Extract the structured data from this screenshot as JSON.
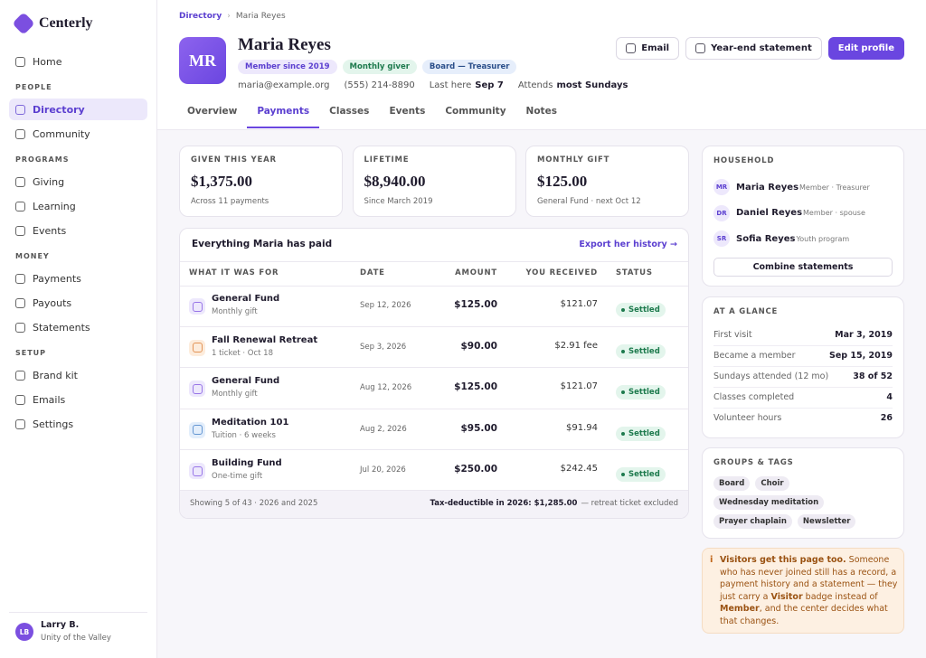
{
  "sidebar": {
    "brand": "Centerly",
    "home": "Home",
    "groups": [
      {
        "heading": "PEOPLE",
        "items": [
          "Directory",
          "Community"
        ]
      },
      {
        "heading": "PROGRAMS",
        "items": [
          "Giving",
          "Learning",
          "Events"
        ]
      },
      {
        "heading": "MONEY",
        "items": [
          "Payments",
          "Payouts",
          "Statements"
        ]
      },
      {
        "heading": "SETUP",
        "items": [
          "Brand kit",
          "Emails",
          "Settings"
        ]
      }
    ],
    "user": {
      "initials": "LB",
      "name": "Larry B.",
      "org": "Unity of the Valley"
    }
  },
  "profile": {
    "breadcrumb": [
      "Directory",
      "Maria Reyes"
    ],
    "initials": "MR",
    "name": "Maria Reyes",
    "badges": [
      "Member since 2019",
      "Monthly giver",
      "Board — Treasurer"
    ],
    "email": "maria@example.org",
    "phone": "(555) 214-8890",
    "last_here_label": "Last here",
    "last_here": "Sep 7",
    "attends_label": "Attends",
    "attends": "most Sundays",
    "actions": [
      "Email",
      "Year-end statement",
      "Edit profile"
    ],
    "tabs": [
      "Overview",
      "Payments",
      "Classes",
      "Events",
      "Community",
      "Notes"
    ]
  },
  "stats": [
    {
      "label": "GIVEN THIS YEAR",
      "value": "$1,375.00",
      "note": "Across 11 payments"
    },
    {
      "label": "LIFETIME",
      "value": "$8,940.00",
      "note": "Since March 2019"
    },
    {
      "label": "MONTHLY GIFT",
      "value": "$125.00",
      "note": "General Fund · next Oct 12"
    }
  ],
  "payments": {
    "title": "Everything Maria has paid",
    "export": "Export her history →",
    "columns": [
      "WHAT IT WAS FOR",
      "DATE",
      "AMOUNT",
      "YOU RECEIVED",
      "STATUS"
    ],
    "rows": [
      {
        "name": "General Fund",
        "sub": "Monthly gift",
        "date": "Sep 12, 2026",
        "amount": "$125.00",
        "received": "$121.07",
        "status": "Settled"
      },
      {
        "name": "Fall Renewal Retreat",
        "sub": "1 ticket · Oct 18",
        "date": "Sep 3, 2026",
        "amount": "$90.00",
        "received": "$2.91 fee",
        "status": "Settled"
      },
      {
        "name": "General Fund",
        "sub": "Monthly gift",
        "date": "Aug 12, 2026",
        "amount": "$125.00",
        "received": "$121.07",
        "status": "Settled"
      },
      {
        "name": "Meditation 101",
        "sub": "Tuition · 6 weeks",
        "date": "Aug 2, 2026",
        "amount": "$95.00",
        "received": "$91.94",
        "status": "Settled"
      },
      {
        "name": "Building Fund",
        "sub": "One-time gift",
        "date": "Jul 20, 2026",
        "amount": "$250.00",
        "received": "$242.45",
        "status": "Settled"
      }
    ],
    "footer": "Showing 5 of 43 · 2026 and 2025",
    "tax_label": "Tax-deductible in 2026: $1,285.00",
    "tax_note": "— retreat ticket excluded"
  },
  "household": {
    "title": "HOUSEHOLD",
    "members": [
      {
        "initials": "MR",
        "name": "Maria Reyes",
        "role": "Member · Treasurer"
      },
      {
        "initials": "DR",
        "name": "Daniel Reyes",
        "role": "Member · spouse"
      },
      {
        "initials": "SR",
        "name": "Sofia Reyes",
        "role": "Youth program"
      }
    ],
    "button": "Combine statements"
  },
  "glance": {
    "title": "AT A GLANCE",
    "rows": [
      [
        "First visit",
        "Mar 3, 2019"
      ],
      [
        "Became a member",
        "Sep 15, 2019"
      ],
      [
        "Sundays attended (12 mo)",
        "38 of 52"
      ],
      [
        "Classes completed",
        "4"
      ],
      [
        "Volunteer hours",
        "26"
      ]
    ]
  },
  "tags": {
    "title": "GROUPS & TAGS",
    "items": [
      "Board",
      "Choir",
      "Wednesday meditation",
      "Prayer chaplain",
      "Newsletter"
    ]
  },
  "notice": {
    "icon": "i",
    "parts": [
      {
        "text": "Visitors get this page too.",
        "bold": true
      },
      {
        "text": " Someone who has never joined still has a record, a payment history and a statement — they just carry a ",
        "bold": false
      },
      {
        "text": "Visitor",
        "bold": true
      },
      {
        "text": " badge instead of ",
        "bold": false
      },
      {
        "text": "Member",
        "bold": true
      },
      {
        "text": ", and the center decides what that changes.",
        "bold": false
      }
    ]
  }
}
